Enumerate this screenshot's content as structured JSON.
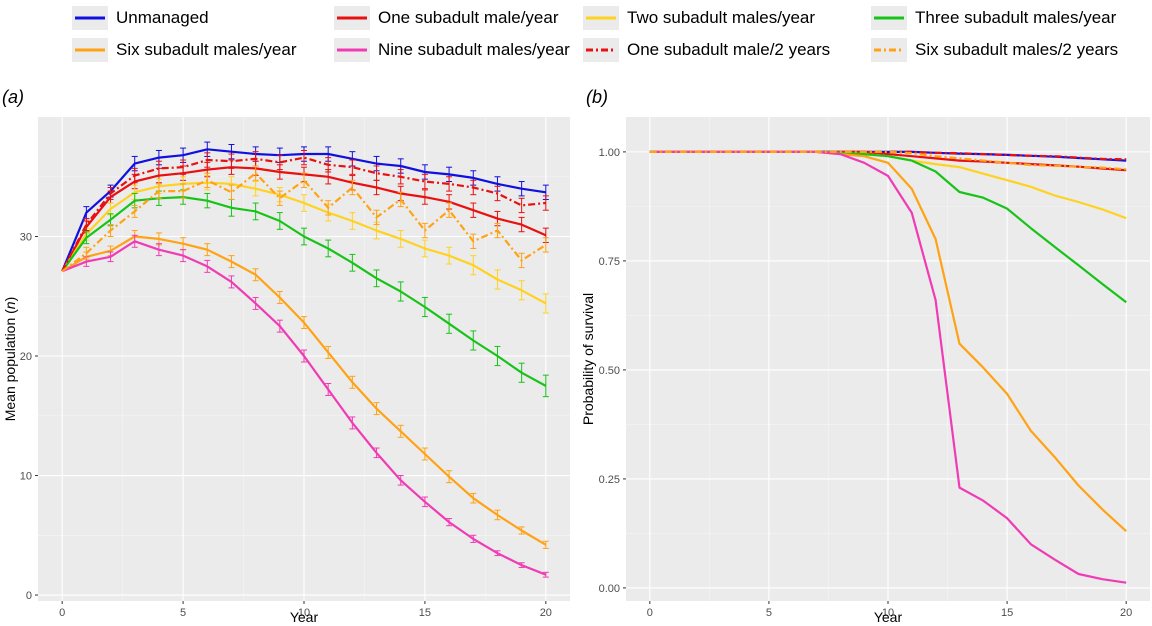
{
  "legend": {
    "items": [
      {
        "label": "Unmanaged",
        "color": "#1010e0",
        "dash": "solid"
      },
      {
        "label": "One subadult male/year",
        "color": "#e81010",
        "dash": "solid"
      },
      {
        "label": "Two subadult males/year",
        "color": "#ffd21f",
        "dash": "solid"
      },
      {
        "label": "Three subadult males/year",
        "color": "#18c318",
        "dash": "solid"
      },
      {
        "label": "Six subadult males/year",
        "color": "#ffa214",
        "dash": "solid"
      },
      {
        "label": "Nine subadult males/year",
        "color": "#f03cb4",
        "dash": "solid"
      },
      {
        "label": "One subadult male/2 years",
        "color": "#e81010",
        "dash": "dotdash"
      },
      {
        "label": "Six subadult males/2 years",
        "color": "#ffa214",
        "dash": "dotdash"
      }
    ]
  },
  "chart_data": [
    {
      "type": "line",
      "panel_label": "(a)",
      "title": "",
      "xlabel": "Year",
      "ylabel": "Mean population (n)",
      "ylabel_main": "Mean population (",
      "ylabel_italic": "n",
      "ylabel_close": ")",
      "xlim": [
        -1,
        21
      ],
      "ylim": [
        -0.5,
        40
      ],
      "xticks": [
        0,
        5,
        10,
        15,
        20
      ],
      "yticks": [
        0,
        10,
        20,
        30
      ],
      "x": [
        0,
        1,
        2,
        3,
        4,
        5,
        6,
        7,
        8,
        9,
        10,
        11,
        12,
        13,
        14,
        15,
        16,
        17,
        18,
        19,
        20
      ],
      "error_bars": true,
      "series": [
        {
          "name": "Unmanaged",
          "values": [
            27.1,
            32.0,
            33.8,
            36.1,
            36.6,
            36.8,
            37.3,
            37.1,
            36.9,
            36.8,
            36.9,
            36.9,
            36.5,
            36.1,
            35.9,
            35.4,
            35.2,
            34.9,
            34.4,
            34.0,
            33.7
          ],
          "err": [
            0,
            0.5,
            0.5,
            0.6,
            0.6,
            0.6,
            0.6,
            0.6,
            0.6,
            0.6,
            0.6,
            0.6,
            0.6,
            0.6,
            0.6,
            0.6,
            0.6,
            0.6,
            0.6,
            0.6,
            0.6
          ]
        },
        {
          "name": "One subadult male/year",
          "values": [
            27.1,
            30.8,
            33.3,
            34.6,
            35.1,
            35.3,
            35.6,
            35.8,
            35.7,
            35.4,
            35.2,
            35.0,
            34.5,
            34.1,
            33.6,
            33.3,
            32.9,
            32.2,
            31.5,
            31.0,
            30.1
          ],
          "err": [
            0,
            0.5,
            0.5,
            0.6,
            0.6,
            0.6,
            0.6,
            0.6,
            0.6,
            0.6,
            0.6,
            0.6,
            0.6,
            0.6,
            0.6,
            0.6,
            0.6,
            0.6,
            0.6,
            0.6,
            0.6
          ]
        },
        {
          "name": "Two subadult males/year",
          "values": [
            27.1,
            30.2,
            32.3,
            33.7,
            34.2,
            34.4,
            34.5,
            34.4,
            34.0,
            33.5,
            32.8,
            32.0,
            31.3,
            30.5,
            29.8,
            29.0,
            28.4,
            27.6,
            26.4,
            25.5,
            24.4
          ],
          "err": [
            0,
            0.5,
            0.5,
            0.6,
            0.6,
            0.6,
            0.6,
            0.6,
            0.6,
            0.6,
            0.7,
            0.7,
            0.7,
            0.7,
            0.7,
            0.7,
            0.7,
            0.8,
            0.8,
            0.8,
            0.8
          ]
        },
        {
          "name": "Three subadult males/year",
          "values": [
            27.1,
            29.9,
            31.4,
            33.0,
            33.2,
            33.3,
            33.0,
            32.4,
            32.1,
            31.3,
            30.0,
            29.0,
            27.8,
            26.5,
            25.4,
            24.1,
            22.7,
            21.3,
            20.0,
            18.6,
            17.5
          ],
          "err": [
            0,
            0.5,
            0.5,
            0.6,
            0.6,
            0.6,
            0.6,
            0.7,
            0.7,
            0.7,
            0.7,
            0.7,
            0.7,
            0.7,
            0.8,
            0.8,
            0.8,
            0.8,
            0.8,
            0.8,
            0.9
          ]
        },
        {
          "name": "Six subadult males/year",
          "values": [
            27.1,
            28.3,
            28.8,
            30.0,
            29.8,
            29.4,
            28.9,
            27.9,
            26.8,
            24.9,
            22.8,
            20.3,
            17.8,
            15.6,
            13.7,
            11.8,
            9.9,
            8.1,
            6.7,
            5.4,
            4.2
          ],
          "err": [
            0,
            0.4,
            0.4,
            0.5,
            0.5,
            0.5,
            0.5,
            0.5,
            0.5,
            0.5,
            0.5,
            0.5,
            0.5,
            0.5,
            0.5,
            0.5,
            0.5,
            0.4,
            0.4,
            0.3,
            0.3
          ]
        },
        {
          "name": "Nine subadult males/year",
          "values": [
            27.1,
            27.9,
            28.3,
            29.6,
            28.9,
            28.4,
            27.5,
            26.2,
            24.4,
            22.5,
            20.0,
            17.2,
            14.4,
            11.9,
            9.6,
            7.8,
            6.1,
            4.7,
            3.5,
            2.5,
            1.7
          ],
          "err": [
            0,
            0.4,
            0.4,
            0.5,
            0.5,
            0.5,
            0.5,
            0.5,
            0.5,
            0.5,
            0.5,
            0.5,
            0.5,
            0.4,
            0.4,
            0.4,
            0.3,
            0.3,
            0.2,
            0.2,
            0.2
          ]
        },
        {
          "name": "One subadult male/2 years",
          "values": [
            27.1,
            31.0,
            33.6,
            35.1,
            35.7,
            35.8,
            36.4,
            36.3,
            36.5,
            36.2,
            36.6,
            36.0,
            35.8,
            35.3,
            35.0,
            34.6,
            34.4,
            34.1,
            33.6,
            32.6,
            32.8
          ],
          "err": [
            0,
            0.5,
            0.5,
            0.6,
            0.6,
            0.6,
            0.6,
            0.6,
            0.6,
            0.6,
            0.6,
            0.6,
            0.6,
            0.6,
            0.6,
            0.6,
            0.6,
            0.6,
            0.6,
            0.6,
            0.6
          ]
        },
        {
          "name": "Six subadult males/2 years",
          "values": [
            27.1,
            28.6,
            30.5,
            32.1,
            33.8,
            33.8,
            34.7,
            33.7,
            35.3,
            33.2,
            34.7,
            32.4,
            34.1,
            31.6,
            33.1,
            30.5,
            32.2,
            29.6,
            30.5,
            28.0,
            29.3
          ],
          "err": [
            0,
            0.5,
            0.5,
            0.5,
            0.6,
            0.6,
            0.6,
            0.6,
            0.6,
            0.6,
            0.6,
            0.6,
            0.6,
            0.6,
            0.6,
            0.6,
            0.6,
            0.6,
            0.6,
            0.6,
            0.6
          ]
        }
      ]
    },
    {
      "type": "line",
      "panel_label": "(b)",
      "title": "",
      "xlabel": "Year",
      "ylabel": "Probability of survival",
      "xlim": [
        -1,
        21
      ],
      "ylim": [
        -0.03,
        1.08
      ],
      "xticks": [
        0,
        5,
        10,
        15,
        20
      ],
      "yticks": [
        0.0,
        0.25,
        0.5,
        0.75,
        1.0
      ],
      "ytick_labels": [
        "0.00",
        "0.25",
        "0.50",
        "0.75",
        "1.00"
      ],
      "x": [
        0,
        1,
        2,
        3,
        4,
        5,
        6,
        7,
        8,
        9,
        10,
        11,
        12,
        13,
        14,
        15,
        16,
        17,
        18,
        19,
        20
      ],
      "error_bars": false,
      "series": [
        {
          "name": "Unmanaged",
          "values": [
            1,
            1,
            1,
            1,
            1,
            1,
            1,
            1,
            1,
            1,
            1,
            1,
            0.998,
            0.996,
            0.995,
            0.993,
            0.991,
            0.989,
            0.986,
            0.983,
            0.98
          ]
        },
        {
          "name": "One subadult male/year",
          "values": [
            1,
            1,
            1,
            1,
            1,
            1,
            1,
            1,
            1,
            1,
            0.995,
            0.99,
            0.985,
            0.98,
            0.978,
            0.975,
            0.972,
            0.969,
            0.966,
            0.962,
            0.958
          ]
        },
        {
          "name": "Two subadult males/year",
          "values": [
            1,
            1,
            1,
            1,
            1,
            1,
            1,
            1,
            0.998,
            0.995,
            0.99,
            0.98,
            0.972,
            0.965,
            0.95,
            0.935,
            0.92,
            0.9,
            0.885,
            0.868,
            0.848
          ]
        },
        {
          "name": "Three subadult males/year",
          "values": [
            1,
            1,
            1,
            1,
            1,
            1,
            1,
            1,
            0.998,
            0.995,
            0.99,
            0.98,
            0.955,
            0.908,
            0.895,
            0.87,
            0.825,
            0.782,
            0.74,
            0.697,
            0.655
          ]
        },
        {
          "name": "Six subadult males/year",
          "values": [
            1,
            1,
            1,
            1,
            1,
            1,
            1,
            1,
            0.995,
            0.99,
            0.975,
            0.915,
            0.8,
            0.56,
            0.505,
            0.445,
            0.36,
            0.3,
            0.235,
            0.18,
            0.13
          ]
        },
        {
          "name": "Nine subadult males/year",
          "values": [
            1,
            1,
            1,
            1,
            1,
            1,
            1,
            1,
            0.995,
            0.975,
            0.945,
            0.86,
            0.66,
            0.23,
            0.2,
            0.16,
            0.1,
            0.065,
            0.032,
            0.02,
            0.012
          ]
        },
        {
          "name": "One subadult male/2 years",
          "values": [
            1,
            1,
            1,
            1,
            1,
            1,
            1,
            1,
            1,
            1,
            1,
            1,
            0.998,
            0.997,
            0.995,
            0.993,
            0.991,
            0.99,
            0.987,
            0.984,
            0.983
          ]
        },
        {
          "name": "Six subadult males/2 years",
          "values": [
            1,
            1,
            1,
            1,
            1,
            1,
            1,
            1,
            1,
            1,
            1,
            0.997,
            0.99,
            0.985,
            0.98,
            0.975,
            0.97,
            0.968,
            0.966,
            0.964,
            0.96
          ]
        }
      ]
    }
  ]
}
